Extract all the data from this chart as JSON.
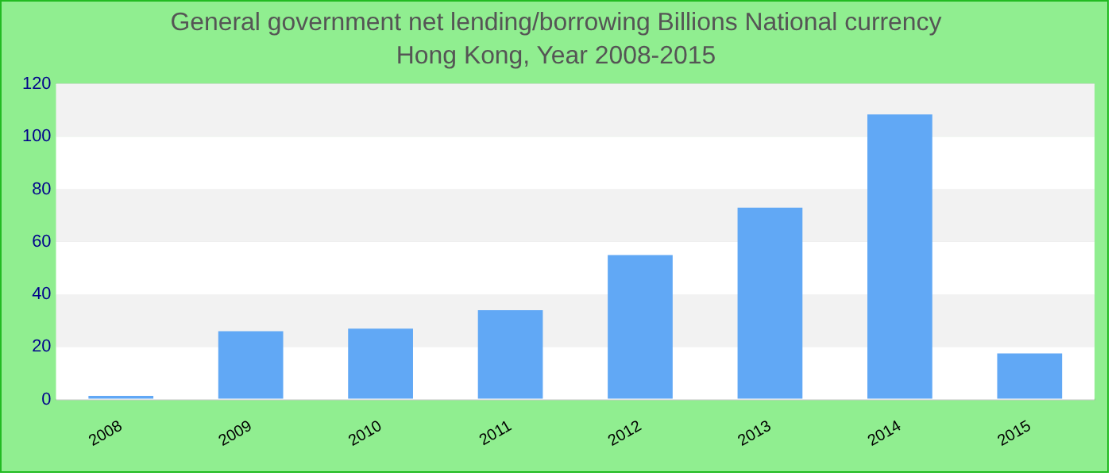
{
  "chart_data": {
    "type": "bar",
    "title": "General government net lending/borrowing Billions National currency",
    "subtitle": "Hong Kong, Year 2008-2015",
    "categories": [
      "2008",
      "2009",
      "2010",
      "2011",
      "2012",
      "2013",
      "2014",
      "2015"
    ],
    "values": [
      1.4,
      26,
      27,
      34,
      55,
      73,
      108.5,
      17.5
    ],
    "color": "#61a8f5",
    "ylim": [
      0,
      120
    ],
    "yticks": [
      0,
      20,
      40,
      60,
      80,
      100,
      120
    ],
    "grid": "y",
    "legend": false
  }
}
